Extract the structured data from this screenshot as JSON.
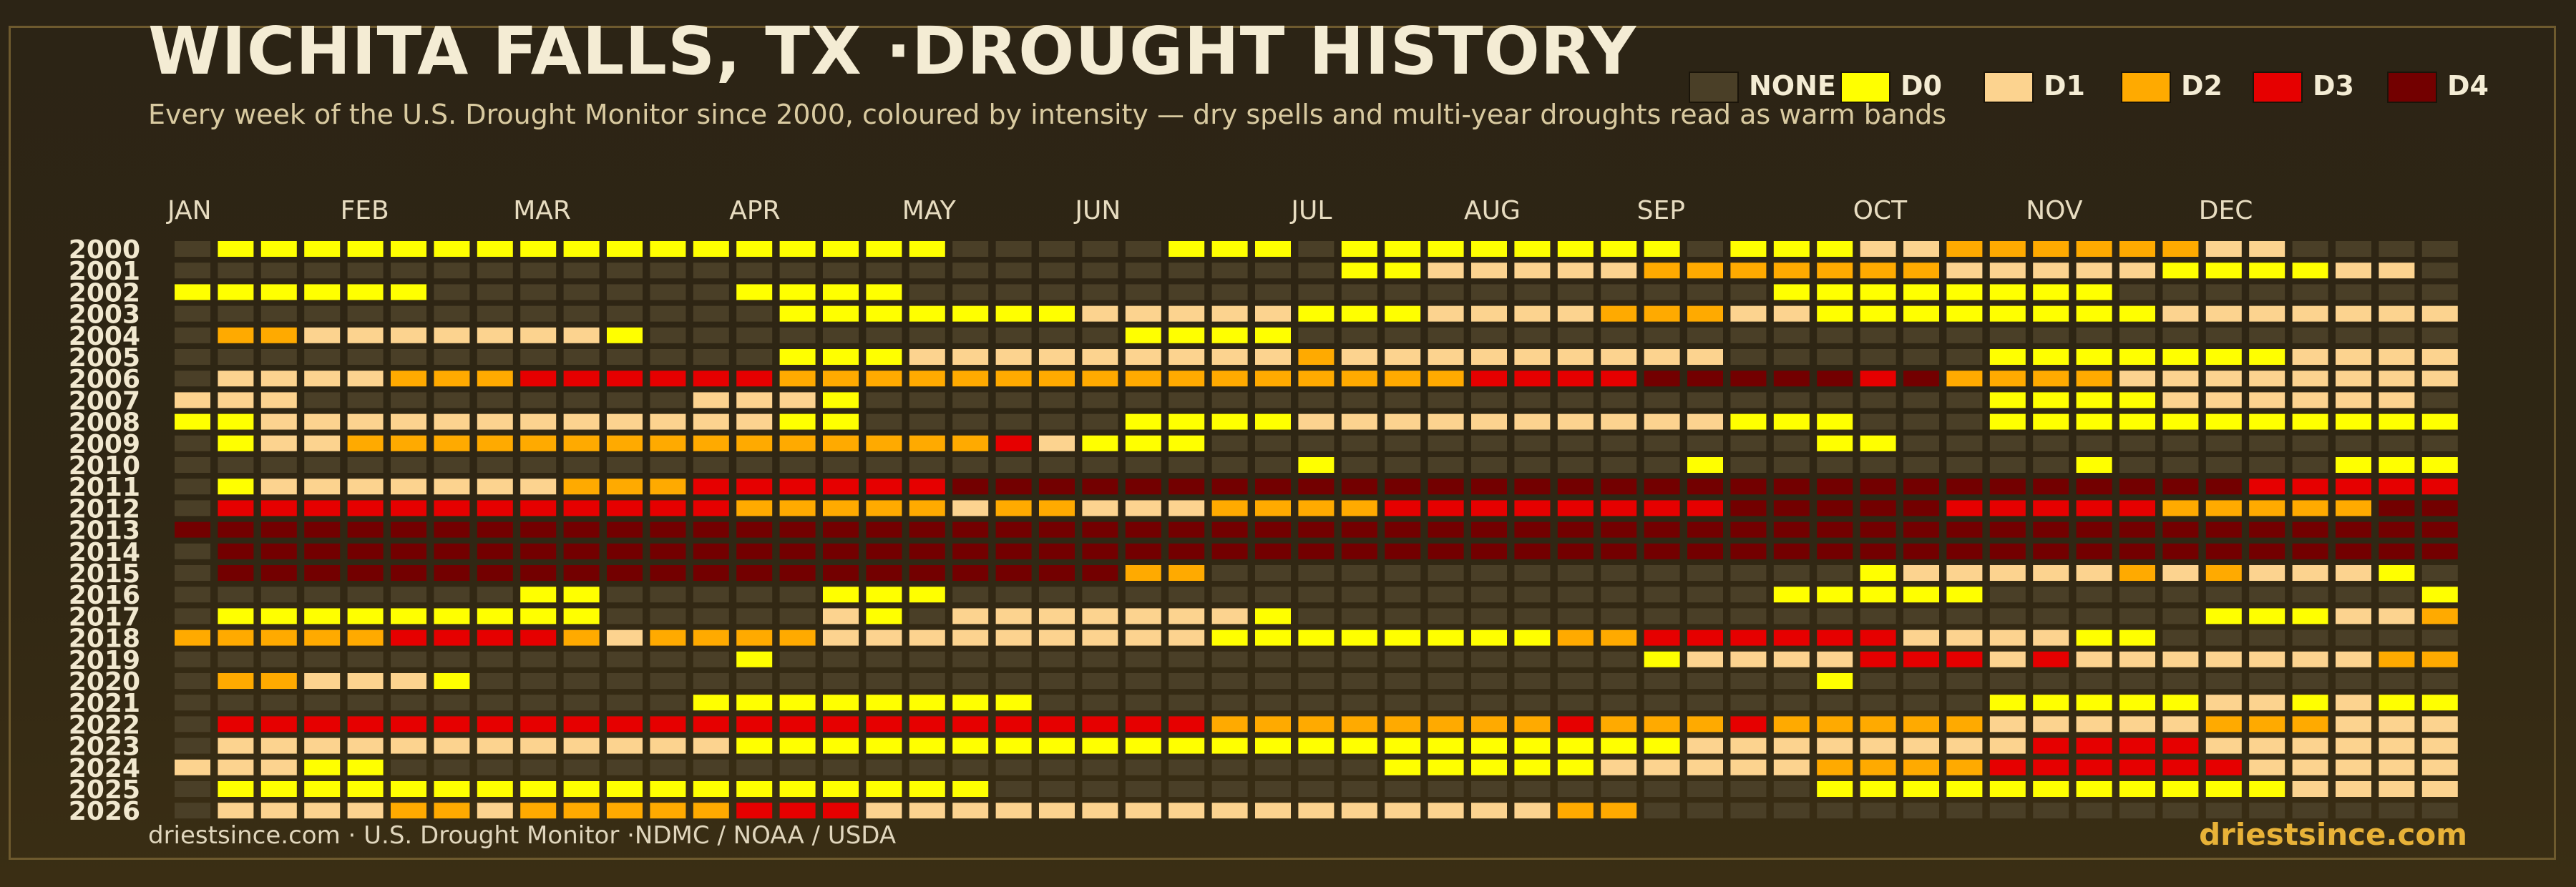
{
  "header": {
    "title": "WICHITA FALLS, TX ·DROUGHT HISTORY",
    "subtitle": "Every week of the U.S. Drought Monitor since 2000, coloured by intensity — dry spells and multi-year droughts read as warm bands"
  },
  "legend": [
    {
      "label": "NONE",
      "color": "#4a3f27"
    },
    {
      "label": "D0",
      "color": "#ffff00"
    },
    {
      "label": "D1",
      "color": "#fcd38f"
    },
    {
      "label": "D2",
      "color": "#ffaa00"
    },
    {
      "label": "D3",
      "color": "#e60000"
    },
    {
      "label": "D4",
      "color": "#730000"
    }
  ],
  "footer": {
    "source": "driestsince.com  · U.S. Drought Monitor ·NDMC / NOAA / USDA",
    "brand": "driestsince.com"
  },
  "chart_data": {
    "type": "heatmap",
    "title": "WICHITA FALLS, TX ·DROUGHT HISTORY",
    "x_labels": [
      "JAN",
      "FEB",
      "MAR",
      "APR",
      "MAY",
      "JUN",
      "JUL",
      "AUG",
      "SEP",
      "OCT",
      "NOV",
      "DEC"
    ],
    "month_start_weeks": [
      0,
      4,
      8,
      13,
      17,
      21,
      26,
      30,
      34,
      39,
      43,
      47
    ],
    "y_labels": [
      "2000",
      "2001",
      "2002",
      "2003",
      "2004",
      "2005",
      "2006",
      "2007",
      "2008",
      "2009",
      "2010",
      "2011",
      "2012",
      "2013",
      "2014",
      "2015",
      "2016",
      "2017",
      "2018",
      "2019",
      "2020",
      "2021",
      "2022",
      "2023",
      "2024",
      "2025",
      "2026"
    ],
    "value_scale": {
      "0": "NONE",
      "1": "D0",
      "2": "D1",
      "3": "D2",
      "4": "D3",
      "5": "D4"
    },
    "weeks_per_year": 53,
    "rows": [
      "01111111111111111100000111011111111011122333333220000",
      "00000000000000000000000000011222223333333222221111220",
      "11111100000001111000000000000000000001111111100000000",
      "00000000000000111111122222111222233322111111112222222",
      "03322222221000000000001111000000000000000000000000000",
      "00000000000000111222222222322222222200000011111112222",
      "02222333444444333333333333333344445555545333322222222",
      "22200000000022210000000000000000000000000011112222220",
      "11222222222222110000001111222222222211100011111111111",
      "01223333333333333334211100000000000000110000000000000",
      "00000000000000000000000000100000000100000000100000111",
      "01222222233344444455555555555555555555555555555544444",
      "04444444444443333323322233334444444455555444443333355",
      "55555555555555555555555555555555555555555555555555555",
      "05555555555555555555555555555555555555555555555555555",
      "05555555555555555555553300000000000000012222232322210",
      "00000000110000011100000000000000000001111100000000001",
      "01111111110000021022222221000000000000000000000111223",
      "33333444432333322222222211111111334444442222110000000",
      "00000000000001000000000000000000001222244424222222233",
      "03322210000000000000000000000000000000100000000000000",
      "00000000000011111111000000000000000000000011111221211",
      "04444444444444444444444433333333433343333322222333222",
      "02222222222221111111111111111111111222222224444222222",
      "22211000000000000000000000001111122222333344444422222",
      "01111111111111111110000000000000000000111111111112222",
      "02222332333334442222222222222222330000000000000000000"
    ]
  }
}
